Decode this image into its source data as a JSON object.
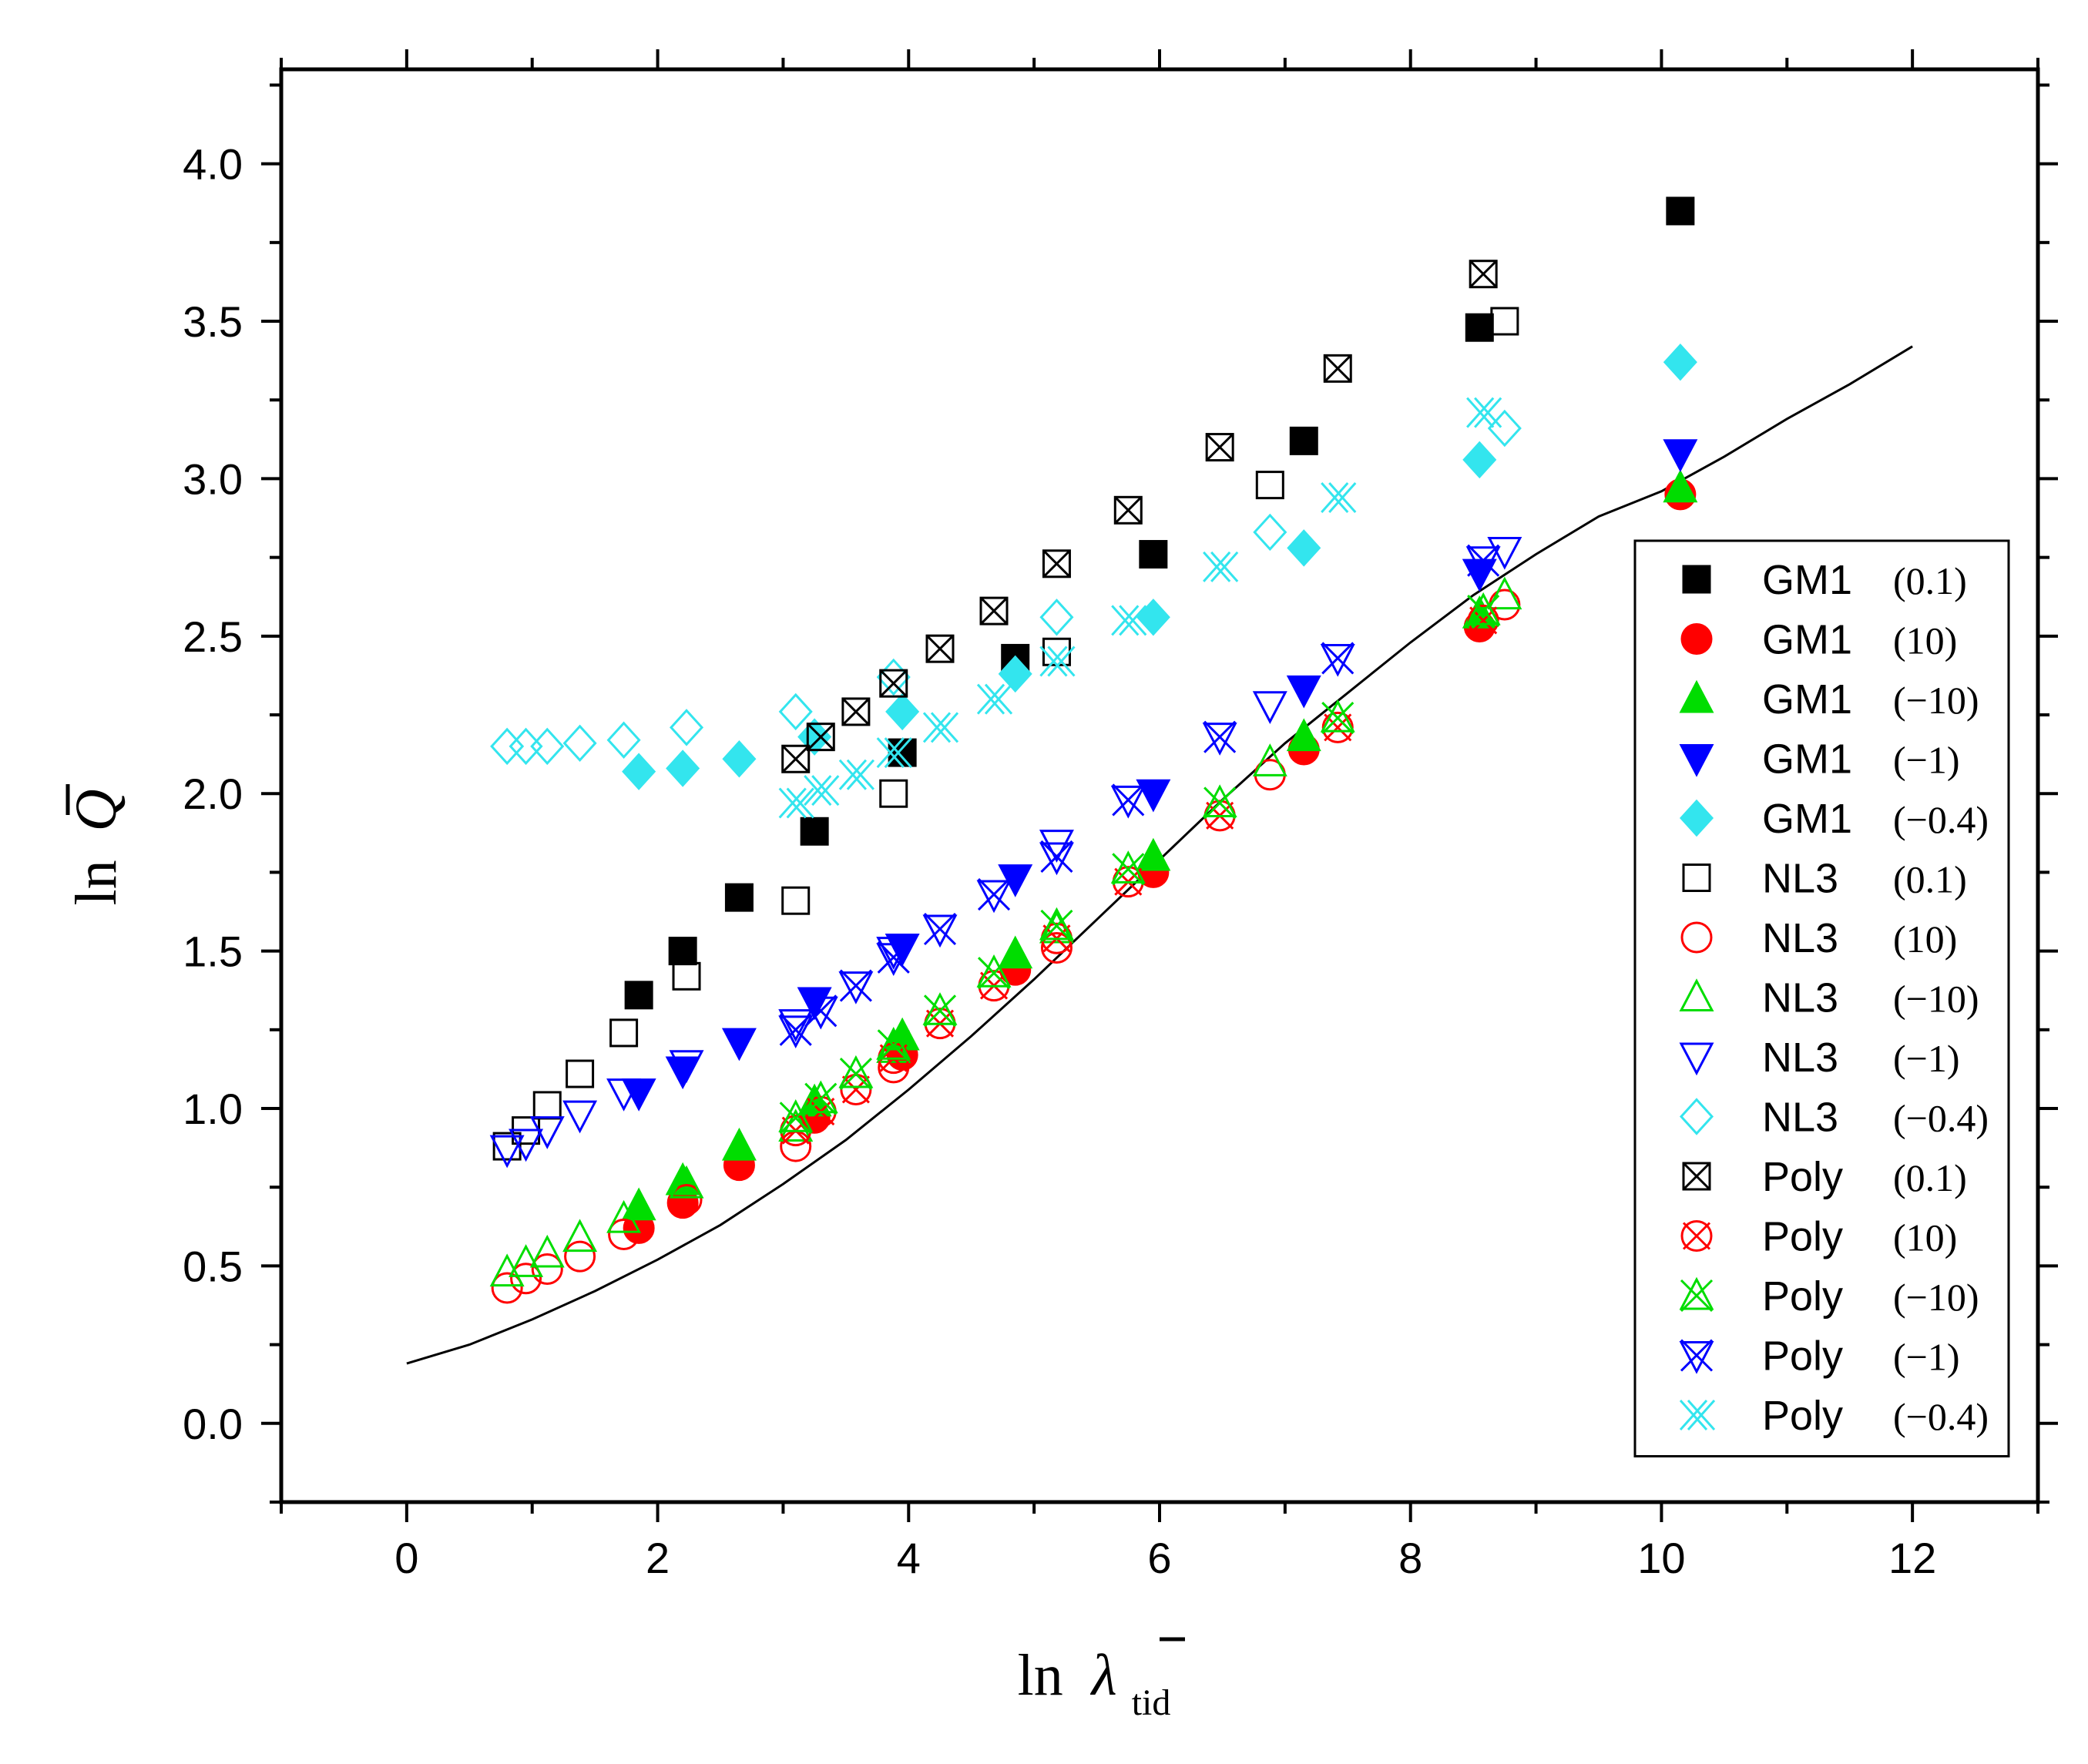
{
  "chart_data": {
    "type": "scatter",
    "xlabel": "ln λ̄",
    "xlabel_main": "ln",
    "xlabel_symbol": "λ",
    "xlabel_sub": "tid",
    "ylabel": "ln Q̄",
    "ylabel_main": "ln",
    "ylabel_symbol": "Q",
    "xlim": [
      -1,
      13
    ],
    "ylim": [
      -0.25,
      4.3
    ],
    "xticks": [
      0,
      2,
      4,
      6,
      8,
      10,
      12
    ],
    "xtick_labels": [
      "0",
      "2",
      "4",
      "6",
      "8",
      "10",
      "12"
    ],
    "yticks": [
      0.0,
      0.5,
      1.0,
      1.5,
      2.0,
      2.5,
      3.0,
      3.5,
      4.0
    ],
    "ytick_labels": [
      "0.0",
      "0.5",
      "1.0",
      "1.5",
      "2.0",
      "2.5",
      "3.0",
      "3.5",
      "4.0"
    ],
    "grid": false,
    "legend_position": "right",
    "fit_curve": {
      "x": [
        0,
        0.5,
        1,
        1.5,
        2,
        2.5,
        3,
        3.5,
        4,
        4.5,
        5,
        5.5,
        6,
        6.5,
        7,
        7.5,
        8,
        8.5,
        9,
        9.5,
        10,
        10.5,
        11,
        11.5,
        12
      ],
      "y": [
        0.19,
        0.25,
        0.33,
        0.42,
        0.52,
        0.63,
        0.76,
        0.9,
        1.06,
        1.23,
        1.41,
        1.6,
        1.79,
        1.98,
        2.16,
        2.32,
        2.48,
        2.63,
        2.76,
        2.88,
        2.96,
        3.07,
        3.19,
        3.3,
        3.42
      ]
    },
    "series": [
      {
        "name": "GM1",
        "param": "(0.1)",
        "marker": "square",
        "color": "#000000",
        "filled": true,
        "x": [
          1.85,
          2.2,
          2.65,
          3.25,
          3.95,
          4.85,
          5.95,
          7.15,
          8.55,
          10.15
        ],
        "y": [
          1.36,
          1.5,
          1.67,
          1.88,
          2.13,
          2.43,
          2.76,
          3.12,
          3.48,
          3.85
        ]
      },
      {
        "name": "GM1",
        "param": "(10)",
        "marker": "circle",
        "color": "#ff0000",
        "filled": true,
        "x": [
          1.85,
          2.2,
          2.65,
          3.25,
          3.95,
          4.85,
          5.95,
          7.15,
          8.55,
          10.15
        ],
        "y": [
          0.62,
          0.7,
          0.82,
          0.97,
          1.17,
          1.44,
          1.75,
          2.14,
          2.53,
          2.95
        ]
      },
      {
        "name": "GM1",
        "param": "(−10)",
        "marker": "triangle-up",
        "color": "#00dd00",
        "filled": true,
        "x": [
          1.85,
          2.2,
          2.65,
          3.25,
          3.95,
          4.85,
          5.95,
          7.15,
          8.55,
          10.15
        ],
        "y": [
          0.69,
          0.77,
          0.88,
          1.02,
          1.23,
          1.49,
          1.8,
          2.18,
          2.57,
          2.97
        ]
      },
      {
        "name": "GM1",
        "param": "(−1)",
        "marker": "triangle-down",
        "color": "#0000ff",
        "filled": true,
        "x": [
          1.85,
          2.2,
          2.65,
          3.25,
          3.95,
          4.85,
          5.95,
          7.15,
          8.55,
          10.15
        ],
        "y": [
          1.05,
          1.12,
          1.21,
          1.34,
          1.51,
          1.73,
          2.0,
          2.33,
          2.7,
          3.08
        ]
      },
      {
        "name": "GM1",
        "param": "(−0.4)",
        "marker": "diamond",
        "color": "#33e5ee",
        "filled": true,
        "x": [
          1.85,
          2.2,
          2.65,
          3.25,
          3.95,
          4.85,
          5.95,
          7.15,
          8.55,
          10.15
        ],
        "y": [
          2.07,
          2.08,
          2.11,
          2.18,
          2.26,
          2.38,
          2.56,
          2.78,
          3.06,
          3.37
        ]
      },
      {
        "name": "NL3",
        "param": "(0.1)",
        "marker": "square",
        "color": "#000000",
        "filled": false,
        "x": [
          0.8,
          0.95,
          1.12,
          1.38,
          1.73,
          2.23,
          3.1,
          3.88,
          5.18,
          6.88,
          8.75
        ],
        "y": [
          0.88,
          0.93,
          1.01,
          1.11,
          1.24,
          1.42,
          1.66,
          2.0,
          2.45,
          2.98,
          3.5
        ]
      },
      {
        "name": "NL3",
        "param": "(10)",
        "marker": "circle",
        "color": "#ff0000",
        "filled": false,
        "x": [
          0.8,
          0.95,
          1.12,
          1.38,
          1.73,
          2.23,
          3.1,
          3.88,
          5.18,
          6.88,
          8.75
        ],
        "y": [
          0.43,
          0.46,
          0.49,
          0.53,
          0.6,
          0.71,
          0.88,
          1.13,
          1.51,
          2.06,
          2.6
        ]
      },
      {
        "name": "NL3",
        "param": "(−10)",
        "marker": "triangle-up",
        "color": "#00dd00",
        "filled": false,
        "x": [
          0.8,
          0.95,
          1.12,
          1.38,
          1.73,
          2.23,
          3.1,
          3.88,
          5.18,
          6.88,
          8.75
        ],
        "y": [
          0.48,
          0.51,
          0.54,
          0.59,
          0.65,
          0.76,
          0.94,
          1.19,
          1.57,
          2.1,
          2.63
        ]
      },
      {
        "name": "NL3",
        "param": "(−1)",
        "marker": "triangle-down",
        "color": "#0000ff",
        "filled": false,
        "x": [
          0.8,
          0.95,
          1.12,
          1.38,
          1.73,
          2.23,
          3.1,
          3.88,
          5.18,
          6.88,
          8.75
        ],
        "y": [
          0.87,
          0.89,
          0.93,
          0.98,
          1.05,
          1.14,
          1.27,
          1.5,
          1.84,
          2.28,
          2.77
        ]
      },
      {
        "name": "NL3",
        "param": "(−0.4)",
        "marker": "diamond",
        "color": "#33e5ee",
        "filled": false,
        "x": [
          0.8,
          0.95,
          1.12,
          1.38,
          1.73,
          2.23,
          3.1,
          3.88,
          5.18,
          6.88,
          8.75
        ],
        "y": [
          2.15,
          2.15,
          2.15,
          2.16,
          2.17,
          2.21,
          2.26,
          2.37,
          2.56,
          2.83,
          3.16
        ]
      },
      {
        "name": "Poly",
        "param": "(0.1)",
        "marker": "square-x",
        "color": "#000000",
        "filled": false,
        "x": [
          3.1,
          3.3,
          3.58,
          3.88,
          4.25,
          4.68,
          5.18,
          5.75,
          6.48,
          7.42,
          8.58
        ],
        "y": [
          2.11,
          2.18,
          2.26,
          2.35,
          2.46,
          2.58,
          2.73,
          2.9,
          3.1,
          3.35,
          3.65
        ]
      },
      {
        "name": "Poly",
        "param": "(10)",
        "marker": "circle-x",
        "color": "#ff0000",
        "filled": false,
        "x": [
          3.1,
          3.3,
          3.58,
          3.88,
          4.25,
          4.68,
          5.18,
          5.75,
          6.48,
          7.42,
          8.58
        ],
        "y": [
          0.93,
          0.99,
          1.06,
          1.16,
          1.27,
          1.39,
          1.54,
          1.72,
          1.93,
          2.21,
          2.55
        ]
      },
      {
        "name": "Poly",
        "param": "(−10)",
        "marker": "star-x",
        "color": "#00dd00",
        "filled": false,
        "x": [
          3.1,
          3.3,
          3.58,
          3.88,
          4.25,
          4.68,
          5.18,
          5.75,
          6.48,
          7.42,
          8.58
        ],
        "y": [
          0.97,
          1.03,
          1.11,
          1.2,
          1.31,
          1.43,
          1.58,
          1.76,
          1.97,
          2.24,
          2.58
        ]
      },
      {
        "name": "Poly",
        "param": "(−1)",
        "marker": "star-x-down",
        "color": "#0000ff",
        "filled": false,
        "x": [
          3.1,
          3.3,
          3.58,
          3.88,
          4.25,
          4.68,
          5.18,
          5.75,
          6.48,
          7.42,
          8.58
        ],
        "y": [
          1.25,
          1.31,
          1.39,
          1.48,
          1.57,
          1.68,
          1.8,
          1.98,
          2.18,
          2.43,
          2.74
        ]
      },
      {
        "name": "Poly",
        "param": "(−0.4)",
        "marker": "double-x",
        "color": "#33e5ee",
        "filled": false,
        "x": [
          3.1,
          3.3,
          3.58,
          3.88,
          4.25,
          4.68,
          5.18,
          5.75,
          6.48,
          7.42,
          8.58
        ],
        "y": [
          1.97,
          2.01,
          2.06,
          2.13,
          2.21,
          2.3,
          2.42,
          2.55,
          2.72,
          2.94,
          3.21
        ]
      }
    ]
  }
}
